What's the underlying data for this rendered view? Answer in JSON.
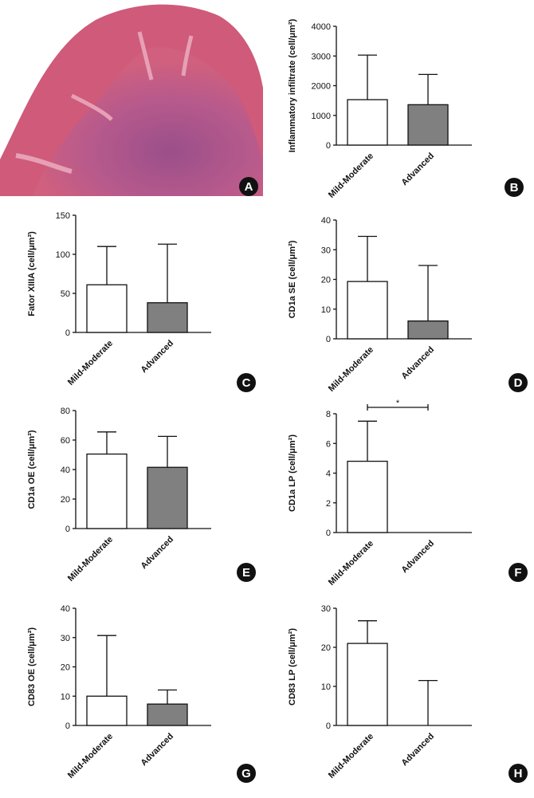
{
  "image_panel": {
    "label": "A"
  },
  "chart_data": [
    {
      "type": "bar",
      "panel": "B",
      "y_label": "Inflammatory infiltrate (cell/μm²)",
      "categories": [
        "Mild-Moderate",
        "Advanced"
      ],
      "values": [
        1530,
        1360
      ],
      "errors": [
        1500,
        1020
      ],
      "bar_colors": [
        "#ffffff",
        "#808080"
      ],
      "ylim": [
        0,
        4000
      ],
      "yticks": [
        0,
        1000,
        2000,
        3000,
        4000
      ]
    },
    {
      "type": "bar",
      "panel": "C",
      "y_label": "Fator XIIIA (cell/μm²)",
      "categories": [
        "Mild-Moderate",
        "Advanced"
      ],
      "values": [
        61,
        38
      ],
      "errors": [
        49,
        75
      ],
      "bar_colors": [
        "#ffffff",
        "#808080"
      ],
      "ylim": [
        0,
        150
      ],
      "yticks": [
        0,
        50,
        100,
        150
      ]
    },
    {
      "type": "bar",
      "panel": "D",
      "y_label": "CD1a SE (cell/μm²)",
      "categories": [
        "Mild-Moderate",
        "Advanced"
      ],
      "values": [
        19.3,
        6
      ],
      "errors": [
        15.2,
        18.7
      ],
      "bar_colors": [
        "#ffffff",
        "#808080"
      ],
      "ylim": [
        0,
        40
      ],
      "yticks": [
        0,
        10,
        20,
        30,
        40
      ]
    },
    {
      "type": "bar",
      "panel": "E",
      "y_label": "CD1a OE (cell/μm²)",
      "categories": [
        "Mild-Moderate",
        "Advanced"
      ],
      "values": [
        50.5,
        41.5
      ],
      "errors": [
        15,
        21
      ],
      "bar_colors": [
        "#ffffff",
        "#808080"
      ],
      "ylim": [
        0,
        80
      ],
      "yticks": [
        0,
        20,
        40,
        60,
        80
      ]
    },
    {
      "type": "bar",
      "panel": "F",
      "y_label": "CD1a LP (cell/μm²)",
      "categories": [
        "Mild-Moderate",
        "Advanced"
      ],
      "values": [
        4.8,
        0
      ],
      "errors": [
        2.7,
        0
      ],
      "bar_colors": [
        "#ffffff",
        "#808080"
      ],
      "ylim": [
        0,
        8
      ],
      "yticks": [
        0,
        2,
        4,
        6,
        8
      ],
      "annotation": "*"
    },
    {
      "type": "bar",
      "panel": "G",
      "y_label": "CD83 OE (cell/μm²)",
      "categories": [
        "Mild-Moderate",
        "Advanced"
      ],
      "values": [
        10,
        7.3
      ],
      "errors": [
        20.7,
        4.8
      ],
      "bar_colors": [
        "#ffffff",
        "#808080"
      ],
      "ylim": [
        0,
        40
      ],
      "yticks": [
        0,
        10,
        20,
        30,
        40
      ]
    },
    {
      "type": "bar",
      "panel": "H",
      "y_label": "CD83 LP (cell/μm²)",
      "categories": [
        "Mild-Moderate",
        "Advanced"
      ],
      "values": [
        21,
        0
      ],
      "errors": [
        5.8,
        11.5
      ],
      "bar_colors": [
        "#ffffff",
        "#808080"
      ],
      "ylim": [
        0,
        30
      ],
      "yticks": [
        0,
        10,
        20,
        30
      ]
    }
  ]
}
